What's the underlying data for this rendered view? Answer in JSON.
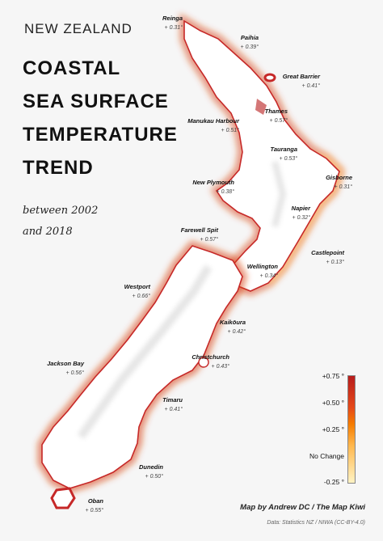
{
  "header": {
    "kicker": "NEW ZEALAND",
    "title_lines": [
      "COASTAL",
      "SEA SURFACE",
      "TEMPERATURE",
      "TREND"
    ],
    "subtitle_lines": [
      "between 2002",
      "and 2018"
    ]
  },
  "locations": [
    {
      "name": "Reinga",
      "value": "+ 0.31°"
    },
    {
      "name": "Paihia",
      "value": "+ 0.39°"
    },
    {
      "name": "Great Barrier",
      "value": "+ 0.41°"
    },
    {
      "name": "Thames",
      "value": "+ 0.57°"
    },
    {
      "name": "Manukau Harbour",
      "value": "+ 0.51°"
    },
    {
      "name": "Tauranga",
      "value": "+ 0.53°"
    },
    {
      "name": "New Plymouth",
      "value": "+ 0.38°"
    },
    {
      "name": "Gisborne",
      "value": "+ 0.31°"
    },
    {
      "name": "Napier",
      "value": "+ 0.32°"
    },
    {
      "name": "Farewell Spit",
      "value": "+ 0.57°"
    },
    {
      "name": "Castlepoint",
      "value": "+ 0.13°"
    },
    {
      "name": "Wellington",
      "value": "+ 0.34°"
    },
    {
      "name": "Westport",
      "value": "+ 0.66°"
    },
    {
      "name": "Kaikōura",
      "value": "+ 0.42°"
    },
    {
      "name": "Christchurch",
      "value": "+ 0.43°"
    },
    {
      "name": "Jackson Bay",
      "value": "+ 0.56°"
    },
    {
      "name": "Timaru",
      "value": "+ 0.41°"
    },
    {
      "name": "Dunedin",
      "value": "+ 0.50°"
    },
    {
      "name": "Oban",
      "value": "+ 0.55°"
    }
  ],
  "legend": {
    "labels": [
      "+0.75 °",
      "+0.50 °",
      "+0.25 °",
      "No Change",
      "-0.25 °"
    ],
    "colors": [
      "#b71c1c",
      "#e64a19",
      "#f57c00",
      "#ffb74d",
      "#fff3c4"
    ]
  },
  "footer": {
    "credit": "Map by Andrew DC / The Map Kiwi",
    "source": "Data: Statistics NZ / NIWA (CC-BY-4.0)"
  }
}
